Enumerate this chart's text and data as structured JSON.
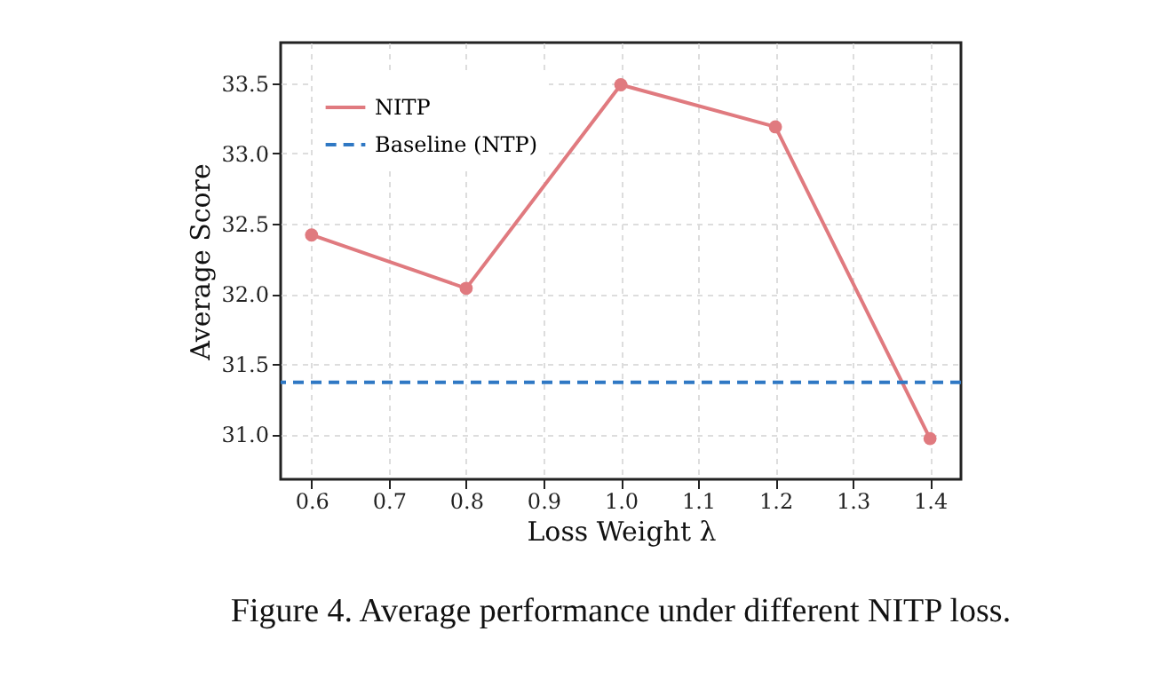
{
  "chart_data": {
    "type": "line",
    "xlabel": "Loss Weight λ",
    "ylabel": "Average Score",
    "x": [
      0.6,
      0.8,
      1.0,
      1.2,
      1.4
    ],
    "series": [
      {
        "name": "NITP",
        "color": "#e07a7f",
        "values": [
          32.42,
          32.04,
          33.49,
          33.19,
          30.97
        ]
      }
    ],
    "ref_lines": [
      {
        "axis": "y",
        "value": 31.37,
        "label": "Baseline (NTP)",
        "color": "#2f78c4",
        "line_style": "dashed"
      }
    ],
    "xlim": [
      0.56,
      1.44
    ],
    "xticks": [
      {
        "value": 0.6,
        "label": "0.6"
      },
      {
        "value": 0.7,
        "label": "0.7"
      },
      {
        "value": 0.8,
        "label": "0.8"
      },
      {
        "value": 0.9,
        "label": "0.9"
      },
      {
        "value": 1.0,
        "label": "1.0"
      },
      {
        "value": 1.1,
        "label": "1.1"
      },
      {
        "value": 1.2,
        "label": "1.2"
      },
      {
        "value": 1.3,
        "label": "1.3"
      },
      {
        "value": 1.4,
        "label": "1.4"
      }
    ],
    "ylim": [
      30.68,
      33.79
    ],
    "yticks": [
      {
        "value": 31.0,
        "label": "31.0"
      },
      {
        "value": 31.5,
        "label": "31.5"
      },
      {
        "value": 32.0,
        "label": "32.0"
      },
      {
        "value": 32.5,
        "label": "32.5"
      },
      {
        "value": 33.0,
        "label": "33.0"
      },
      {
        "value": 33.5,
        "label": "33.5"
      }
    ],
    "grid": true,
    "legend": "top left",
    "marker": "circle",
    "line_style": "solid",
    "annotations": [
      "Figure 4. Average performance under different NITP loss."
    ]
  }
}
